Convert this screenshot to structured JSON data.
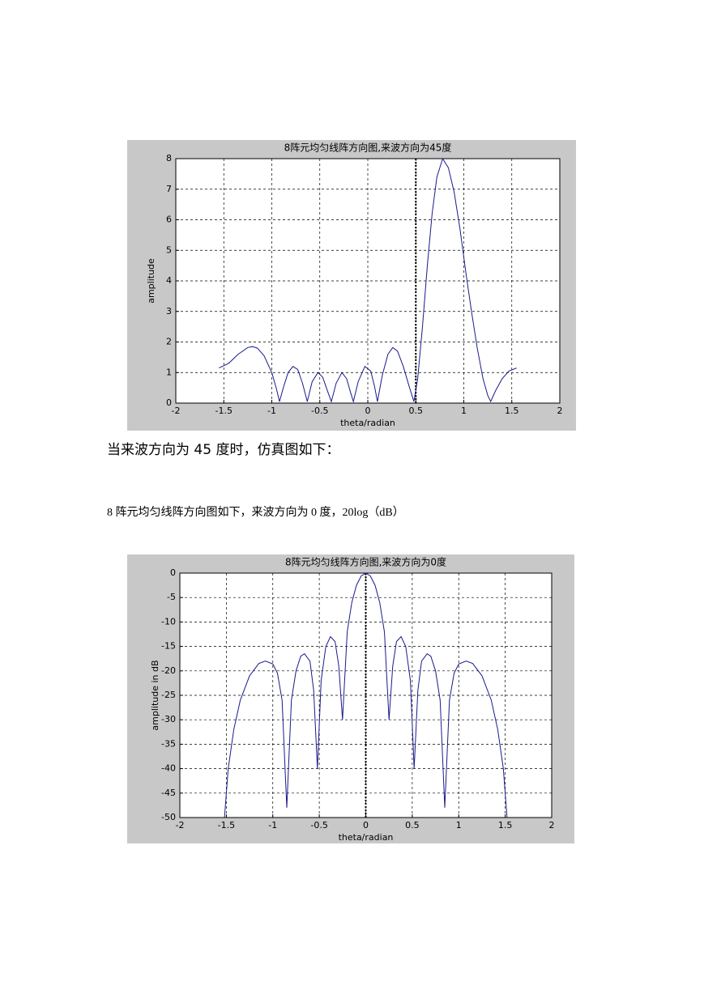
{
  "texts": [
    "当来波方向为 45 度时，仿真图如下：",
    "8 阵元均匀线阵方向图如下，来波方向为 0 度，20log（dB）"
  ],
  "chart_data": [
    {
      "type": "line",
      "title": "8阵元均匀线阵方向图,来波方向为45度",
      "xlabel": "theta/radian",
      "ylabel": "amplitude",
      "xlim": [
        -2,
        2
      ],
      "ylim": [
        0,
        8
      ],
      "xticks": [
        -2,
        -1.5,
        -1,
        -0.5,
        0,
        0.5,
        1,
        1.5,
        2
      ],
      "yticks": [
        0,
        1,
        2,
        3,
        4,
        5,
        6,
        7,
        8
      ],
      "grid": true,
      "color": "#1a1a8c",
      "vline": 0.5,
      "x": [
        -1.55,
        -1.45,
        -1.35,
        -1.25,
        -1.2,
        -1.15,
        -1.08,
        -1.0,
        -0.95,
        -0.92,
        -0.88,
        -0.83,
        -0.78,
        -0.73,
        -0.68,
        -0.63,
        -0.58,
        -0.52,
        -0.47,
        -0.42,
        -0.38,
        -0.33,
        -0.27,
        -0.22,
        -0.18,
        -0.15,
        -0.1,
        -0.03,
        0.03,
        0.07,
        0.1,
        0.15,
        0.21,
        0.26,
        0.31,
        0.37,
        0.43,
        0.48,
        0.52,
        0.57,
        0.62,
        0.67,
        0.72,
        0.78,
        0.84,
        0.9,
        0.96,
        1.02,
        1.08,
        1.14,
        1.2,
        1.25,
        1.28,
        1.33,
        1.4,
        1.47,
        1.55
      ],
      "values": [
        1.15,
        1.3,
        1.6,
        1.82,
        1.85,
        1.8,
        1.55,
        1.0,
        0.45,
        0.05,
        0.5,
        1.0,
        1.2,
        1.1,
        0.65,
        0.05,
        0.7,
        1.0,
        0.85,
        0.4,
        0.05,
        0.65,
        1.0,
        0.8,
        0.35,
        0.05,
        0.7,
        1.2,
        1.05,
        0.55,
        0.05,
        0.9,
        1.6,
        1.82,
        1.7,
        1.2,
        0.55,
        0.05,
        0.8,
        2.5,
        4.5,
        6.2,
        7.4,
        8.0,
        7.7,
        6.9,
        5.7,
        4.3,
        3.0,
        1.8,
        0.8,
        0.25,
        0.05,
        0.4,
        0.8,
        1.05,
        1.15
      ]
    },
    {
      "type": "line",
      "title": "8阵元均匀线阵方向图,来波方向为0度",
      "xlabel": "theta/radian",
      "ylabel": "amplitude in dB",
      "xlim": [
        -2,
        2
      ],
      "ylim": [
        -50,
        0
      ],
      "xticks": [
        -2,
        -1.5,
        -1,
        -0.5,
        0,
        0.5,
        1,
        1.5,
        2
      ],
      "yticks": [
        0,
        -5,
        -10,
        -15,
        -20,
        -25,
        -30,
        -35,
        -40,
        -45,
        -50
      ],
      "grid": true,
      "color": "#1a1a8c",
      "vline": 0,
      "x": [
        -1.52,
        -1.48,
        -1.42,
        -1.35,
        -1.25,
        -1.15,
        -1.08,
        -1.0,
        -0.95,
        -0.9,
        -0.85,
        -0.8,
        -0.75,
        -0.7,
        -0.66,
        -0.6,
        -0.56,
        -0.52,
        -0.48,
        -0.43,
        -0.38,
        -0.33,
        -0.29,
        -0.25,
        -0.2,
        -0.15,
        -0.1,
        -0.05,
        0,
        0.05,
        0.1,
        0.15,
        0.2,
        0.25,
        0.29,
        0.33,
        0.38,
        0.43,
        0.48,
        0.52,
        0.56,
        0.6,
        0.66,
        0.7,
        0.75,
        0.8,
        0.85,
        0.9,
        0.95,
        1.0,
        1.08,
        1.15,
        1.25,
        1.35,
        1.42,
        1.48,
        1.52
      ],
      "values": [
        -50,
        -40,
        -32,
        -26,
        -21,
        -18.5,
        -18,
        -18.6,
        -20.5,
        -26,
        -48,
        -26,
        -20,
        -17,
        -16.5,
        -18,
        -24,
        -40,
        -22,
        -15,
        -13,
        -14,
        -19,
        -30,
        -12,
        -6,
        -2.5,
        -0.6,
        0,
        -0.6,
        -2.5,
        -6,
        -12,
        -30,
        -19,
        -14,
        -13,
        -15,
        -22,
        -40,
        -24,
        -18,
        -16.5,
        -17,
        -20,
        -26,
        -48,
        -26,
        -20.5,
        -18.6,
        -18,
        -18.5,
        -21,
        -26,
        -32,
        -40,
        -50
      ]
    }
  ]
}
